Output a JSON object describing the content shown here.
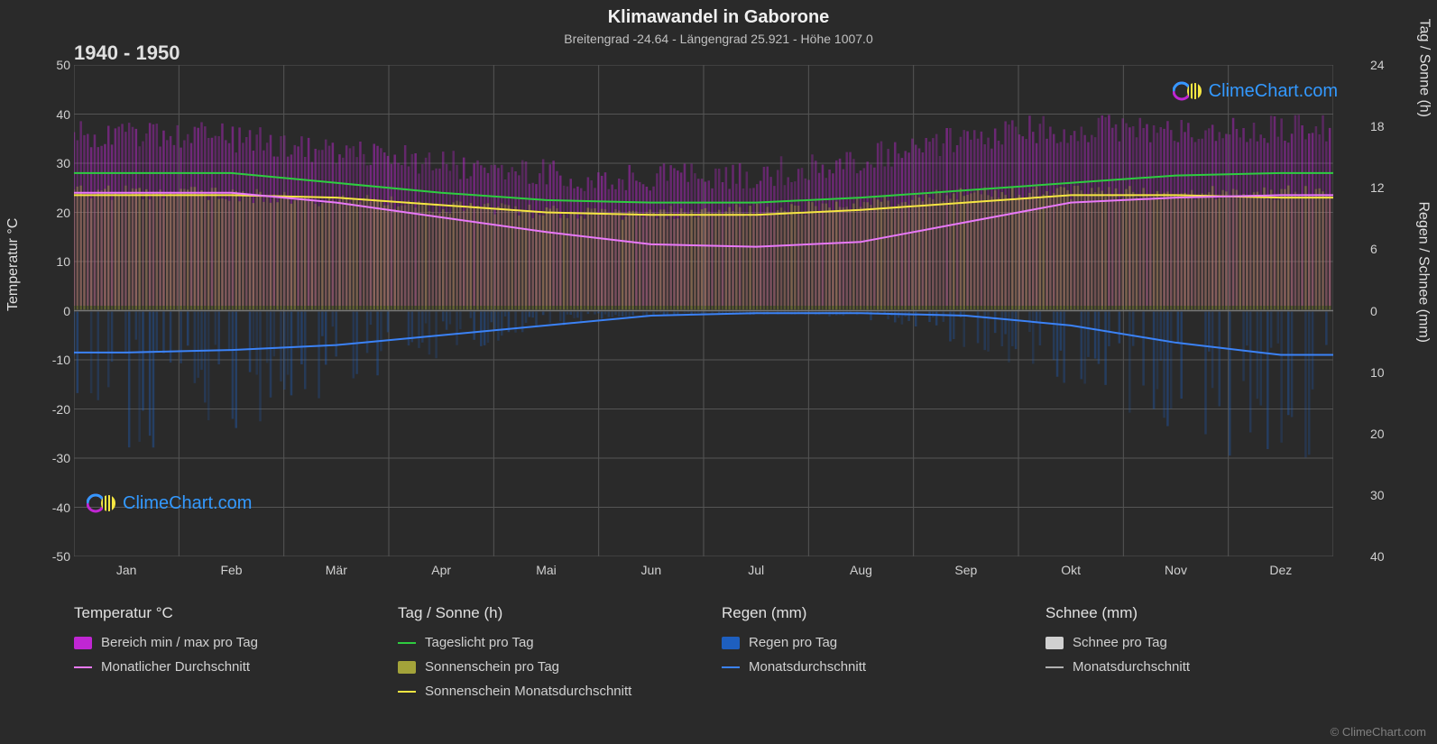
{
  "chart": {
    "type": "climate-composite",
    "title": "Klimawandel in Gaborone",
    "subtitle": "Breitengrad -24.64 - Längengrad 25.921 - Höhe 1007.0",
    "period": "1940 - 1950",
    "background_color": "#2a2a2a",
    "grid_color": "#555555",
    "text_color": "#e0e0e0",
    "months": [
      "Jan",
      "Feb",
      "Mär",
      "Apr",
      "Mai",
      "Jun",
      "Jul",
      "Aug",
      "Sep",
      "Okt",
      "Nov",
      "Dez"
    ],
    "y_left": {
      "label": "Temperatur °C",
      "min": -50,
      "max": 50,
      "step": 10,
      "ticks": [
        50,
        40,
        30,
        20,
        10,
        0,
        -10,
        -20,
        -30,
        -40,
        -50
      ]
    },
    "y_right_top": {
      "label": "Tag / Sonne (h)",
      "ticks": [
        {
          "v": 24,
          "t": 50
        },
        {
          "v": 18,
          "t": 37.5
        },
        {
          "v": 12,
          "t": 25
        },
        {
          "v": 6,
          "t": 12.5
        },
        {
          "v": 0,
          "t": 0
        }
      ]
    },
    "y_right_bottom": {
      "label": "Regen / Schnee (mm)",
      "ticks": [
        {
          "v": 0,
          "t": 0
        },
        {
          "v": 10,
          "t": -12.5
        },
        {
          "v": 20,
          "t": -25
        },
        {
          "v": 30,
          "t": -37.5
        },
        {
          "v": 40,
          "t": -50
        }
      ]
    },
    "series": {
      "daylight": {
        "color": "#2ecc40",
        "width": 2,
        "values": [
          28,
          28,
          26,
          24,
          22.5,
          22,
          22,
          23,
          24.5,
          26,
          27.5,
          28
        ]
      },
      "sunshine_monthly": {
        "color": "#f5e642",
        "width": 2,
        "values": [
          23.5,
          23.5,
          23,
          21.5,
          20,
          19.5,
          19.5,
          20.5,
          22,
          23.5,
          23.5,
          23
        ]
      },
      "temp_monthly": {
        "color": "#e879f9",
        "width": 2,
        "values": [
          24,
          24,
          22,
          19,
          16,
          13.5,
          13,
          14,
          18,
          22,
          23,
          23.5
        ]
      },
      "rain_monthly": {
        "color": "#3b82f6",
        "width": 2,
        "values": [
          -8.5,
          -8,
          -7,
          -5,
          -3,
          -1,
          -0.5,
          -0.5,
          -1,
          -3,
          -6.5,
          -9
        ]
      },
      "temp_range_band": {
        "fill": "#c026d3",
        "opacity": 0.55,
        "max": [
          35,
          35,
          33,
          30,
          28,
          26,
          26,
          28,
          32,
          36,
          36,
          36
        ],
        "min_visual": [
          1,
          1,
          1,
          1,
          1,
          1,
          1,
          1,
          1,
          1,
          1,
          1
        ]
      },
      "sunshine_band": {
        "fill": "#a3a33a",
        "opacity": 0.55,
        "max": [
          24,
          24,
          23,
          22,
          20.5,
          20,
          20,
          21,
          23,
          24,
          24,
          24
        ]
      },
      "rain_bars": {
        "fill": "#1e5fbf",
        "opacity": 0.45,
        "depths": [
          -18,
          -16,
          -13,
          -8,
          -4,
          -1,
          -0.5,
          -0.5,
          -2,
          -7,
          -14,
          -19
        ]
      }
    },
    "legend": {
      "temp": {
        "header": "Temperatur °C",
        "range": {
          "label": "Bereich min / max pro Tag",
          "swatch": "#c026d3"
        },
        "avg": {
          "label": "Monatlicher Durchschnitt",
          "color": "#e879f9"
        }
      },
      "daysun": {
        "header": "Tag / Sonne (h)",
        "daylight": {
          "label": "Tageslicht pro Tag",
          "color": "#2ecc40"
        },
        "sunshine": {
          "label": "Sonnenschein pro Tag",
          "swatch": "#a3a33a"
        },
        "sunavg": {
          "label": "Sonnenschein Monatsdurchschnitt",
          "color": "#f5e642"
        }
      },
      "rain": {
        "header": "Regen (mm)",
        "daily": {
          "label": "Regen pro Tag",
          "swatch": "#1e5fbf"
        },
        "avg": {
          "label": "Monatsdurchschnitt",
          "color": "#3b82f6"
        }
      },
      "snow": {
        "header": "Schnee (mm)",
        "daily": {
          "label": "Schnee pro Tag",
          "swatch": "#d0d0d0"
        },
        "avg": {
          "label": "Monatsdurchschnitt",
          "color": "#b0b0b0"
        }
      }
    },
    "watermark": {
      "text": "ClimeChart.com",
      "color": "#3399ff"
    },
    "copyright": "© ClimeChart.com"
  }
}
